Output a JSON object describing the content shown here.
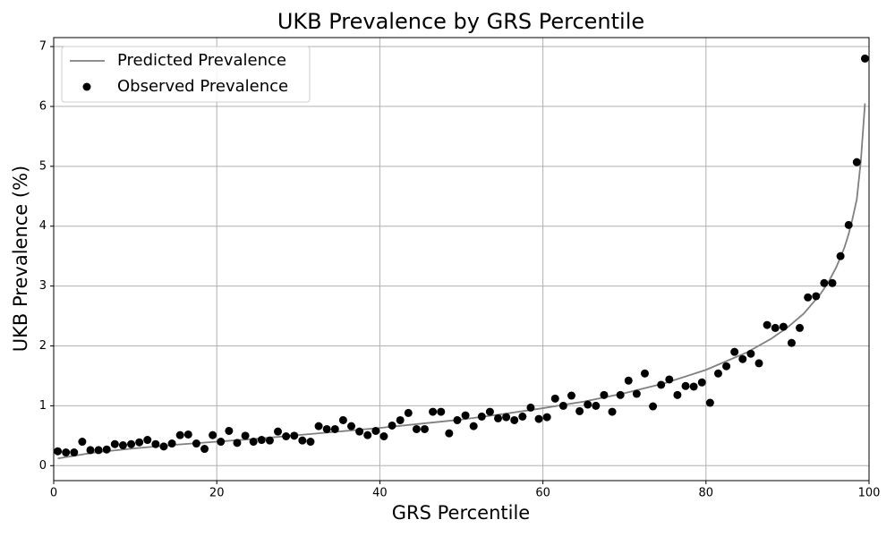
{
  "chart_data": {
    "type": "scatter",
    "title": "UKB Prevalence by GRS Percentile",
    "x_label": "GRS Percentile",
    "y_label": "UKB Prevalence (%)",
    "xlim": [
      0,
      100
    ],
    "ylim": [
      -0.25,
      7.15
    ],
    "xticks": [
      0,
      20,
      40,
      60,
      80,
      100
    ],
    "yticks": [
      0,
      1,
      2,
      3,
      4,
      5,
      6,
      7
    ],
    "grid": true,
    "legend": "upper-left",
    "series": [
      {
        "name": "Predicted Prevalence",
        "type": "line",
        "color": "#808080",
        "x": [
          0.5,
          5,
          10,
          15,
          20,
          25,
          30,
          35,
          40,
          45,
          50,
          55,
          60,
          65,
          70,
          75,
          80,
          85,
          88,
          90,
          92,
          94,
          95,
          96,
          97,
          97.5,
          98,
          98.5,
          99,
          99.5
        ],
        "values": [
          0.12,
          0.22,
          0.29,
          0.35,
          0.4,
          0.45,
          0.51,
          0.57,
          0.63,
          0.7,
          0.77,
          0.86,
          0.96,
          1.07,
          1.21,
          1.38,
          1.6,
          1.89,
          2.12,
          2.31,
          2.54,
          2.86,
          3.06,
          3.32,
          3.65,
          3.87,
          4.14,
          4.45,
          5.1,
          6.05
        ]
      },
      {
        "name": "Observed Prevalence",
        "type": "scatter",
        "color": "#000000",
        "x": [
          0.5,
          1.5,
          2.5,
          3.5,
          4.5,
          5.5,
          6.5,
          7.5,
          8.5,
          9.5,
          10.5,
          11.5,
          12.5,
          13.5,
          14.5,
          15.5,
          16.5,
          17.5,
          18.5,
          19.5,
          20.5,
          21.5,
          22.5,
          23.5,
          24.5,
          25.5,
          26.5,
          27.5,
          28.5,
          29.5,
          30.5,
          31.5,
          32.5,
          33.5,
          34.5,
          35.5,
          36.5,
          37.5,
          38.5,
          39.5,
          40.5,
          41.5,
          42.5,
          43.5,
          44.5,
          45.5,
          46.5,
          47.5,
          48.5,
          49.5,
          50.5,
          51.5,
          52.5,
          53.5,
          54.5,
          55.5,
          56.5,
          57.5,
          58.5,
          59.5,
          60.5,
          61.5,
          62.5,
          63.5,
          64.5,
          65.5,
          66.5,
          67.5,
          68.5,
          69.5,
          70.5,
          71.5,
          72.5,
          73.5,
          74.5,
          75.5,
          76.5,
          77.5,
          78.5,
          79.5,
          80.5,
          81.5,
          82.5,
          83.5,
          84.5,
          85.5,
          86.5,
          87.5,
          88.5,
          89.5,
          90.5,
          91.5,
          92.5,
          93.5,
          94.5,
          95.5,
          96.5,
          97.5,
          98.5,
          99.5
        ],
        "values": [
          0.24,
          0.22,
          0.22,
          0.4,
          0.26,
          0.26,
          0.27,
          0.36,
          0.34,
          0.36,
          0.39,
          0.43,
          0.36,
          0.32,
          0.37,
          0.51,
          0.52,
          0.37,
          0.28,
          0.51,
          0.4,
          0.58,
          0.38,
          0.5,
          0.4,
          0.43,
          0.42,
          0.57,
          0.49,
          0.5,
          0.42,
          0.4,
          0.66,
          0.61,
          0.61,
          0.76,
          0.66,
          0.57,
          0.51,
          0.58,
          0.49,
          0.67,
          0.76,
          0.88,
          0.61,
          0.61,
          0.9,
          0.9,
          0.54,
          0.76,
          0.84,
          0.66,
          0.82,
          0.9,
          0.79,
          0.81,
          0.76,
          0.82,
          0.97,
          0.78,
          0.81,
          1.12,
          1.0,
          1.17,
          0.91,
          1.02,
          1.0,
          1.18,
          0.9,
          1.18,
          1.42,
          1.2,
          1.54,
          0.99,
          1.35,
          1.44,
          1.18,
          1.33,
          1.32,
          1.39,
          1.05,
          1.54,
          1.66,
          1.9,
          1.78,
          1.87,
          1.71,
          2.35,
          2.3,
          2.32,
          2.05,
          2.3,
          2.81,
          2.83,
          3.05,
          3.05,
          3.5,
          4.02,
          5.07,
          6.8
        ]
      }
    ]
  }
}
